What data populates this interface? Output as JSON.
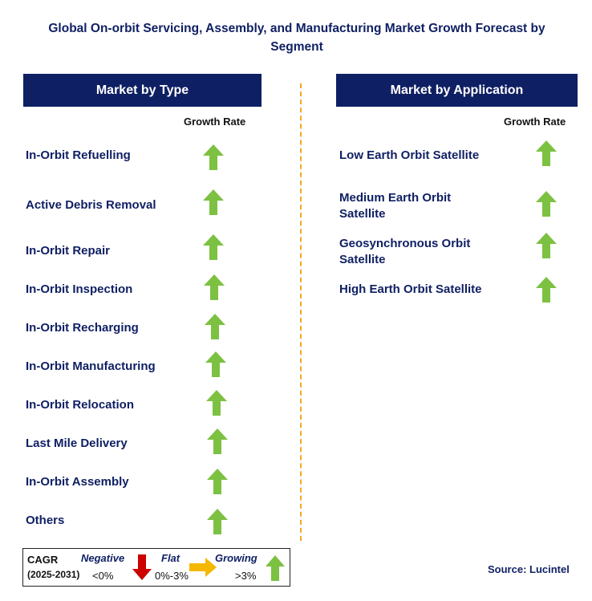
{
  "title": "Global On-orbit Servicing, Assembly, and Manufacturing Market Growth Forecast by Segment",
  "colors": {
    "navy": "#0f1f63",
    "up_green": "#7dc142",
    "down_red": "#cc0000",
    "flat_orange": "#f5b800",
    "divider": "#f5a623"
  },
  "left_panel": {
    "header": "Market by Type",
    "growth_label": "Growth Rate",
    "rows": [
      {
        "label": "In-Orbit Refuelling",
        "trend": "growing"
      },
      {
        "label": "Active Debris Removal",
        "trend": "growing"
      },
      {
        "label": "In-Orbit Repair",
        "trend": "growing"
      },
      {
        "label": "In-Orbit Inspection",
        "trend": "growing"
      },
      {
        "label": "In-Orbit Recharging",
        "trend": "growing"
      },
      {
        "label": "In-Orbit Manufacturing",
        "trend": "growing"
      },
      {
        "label": "In-Orbit Relocation",
        "trend": "growing"
      },
      {
        "label": "Last Mile Delivery",
        "trend": "growing"
      },
      {
        "label": "In-Orbit Assembly",
        "trend": "growing"
      },
      {
        "label": "Others",
        "trend": "growing"
      }
    ]
  },
  "right_panel": {
    "header": "Market by Application",
    "growth_label": "Growth Rate",
    "rows": [
      {
        "label_line1": "Low Earth Orbit Satellite",
        "label_line2": "",
        "trend": "growing"
      },
      {
        "label_line1": "Medium Earth Orbit",
        "label_line2": "Satellite",
        "trend": "growing"
      },
      {
        "label_line1": "Geosynchronous Orbit",
        "label_line2": "Satellite",
        "trend": "growing"
      },
      {
        "label_line1": "High Earth Orbit Satellite",
        "label_line2": "",
        "trend": "growing"
      }
    ]
  },
  "legend": {
    "cagr": "CAGR",
    "period": "(2025-2031)",
    "negative": "Negative",
    "negative_range": "<0%",
    "flat": "Flat",
    "flat_range": "0%-3%",
    "growing": "Growing",
    "growing_range": ">3%"
  },
  "source": "Source: Lucintel"
}
